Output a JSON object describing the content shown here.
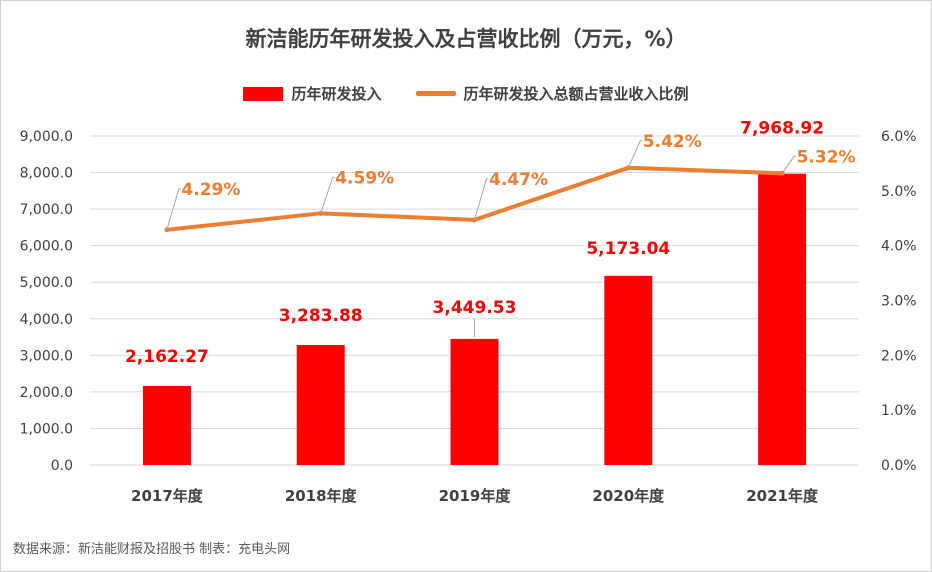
{
  "colors": {
    "bar": "#ff0000",
    "line": "#ed7d31",
    "grid": "#d9d9d9",
    "leader": "#a6a6a6"
  },
  "chart_data": {
    "type": "bar",
    "title": "新洁能历年研发投入及占营收比例（万元，%）",
    "categories": [
      "2017年度",
      "2018年度",
      "2019年度",
      "2020年度",
      "2021年度"
    ],
    "series": [
      {
        "name": "历年研发投入",
        "type": "bar",
        "axis": "left",
        "values": [
          2162.27,
          3283.88,
          3449.53,
          5173.04,
          7968.92
        ],
        "labels": [
          "2,162.27",
          "3,283.88",
          "3,449.53",
          "5,173.04",
          "7,968.92"
        ]
      },
      {
        "name": "历年研发投入总额占营业收入比例",
        "type": "line",
        "axis": "right",
        "values": [
          4.29,
          4.59,
          4.47,
          5.42,
          5.32
        ],
        "labels": [
          "4.29%",
          "4.59%",
          "4.47%",
          "5.42%",
          "5.32%"
        ]
      }
    ],
    "y_left": {
      "min": 0,
      "max": 9000,
      "ticks": [
        "0.0",
        "1,000.0",
        "2,000.0",
        "3,000.0",
        "4,000.0",
        "5,000.0",
        "6,000.0",
        "7,000.0",
        "8,000.0",
        "9,000.0"
      ]
    },
    "y_right": {
      "min": 0,
      "max": 6,
      "ticks": [
        "0.0%",
        "1.0%",
        "2.0%",
        "3.0%",
        "4.0%",
        "5.0%",
        "6.0%"
      ]
    },
    "grid": true,
    "legend_position": "top"
  },
  "source_note": "数据来源：新洁能财报及招股书   制表：充电头网"
}
